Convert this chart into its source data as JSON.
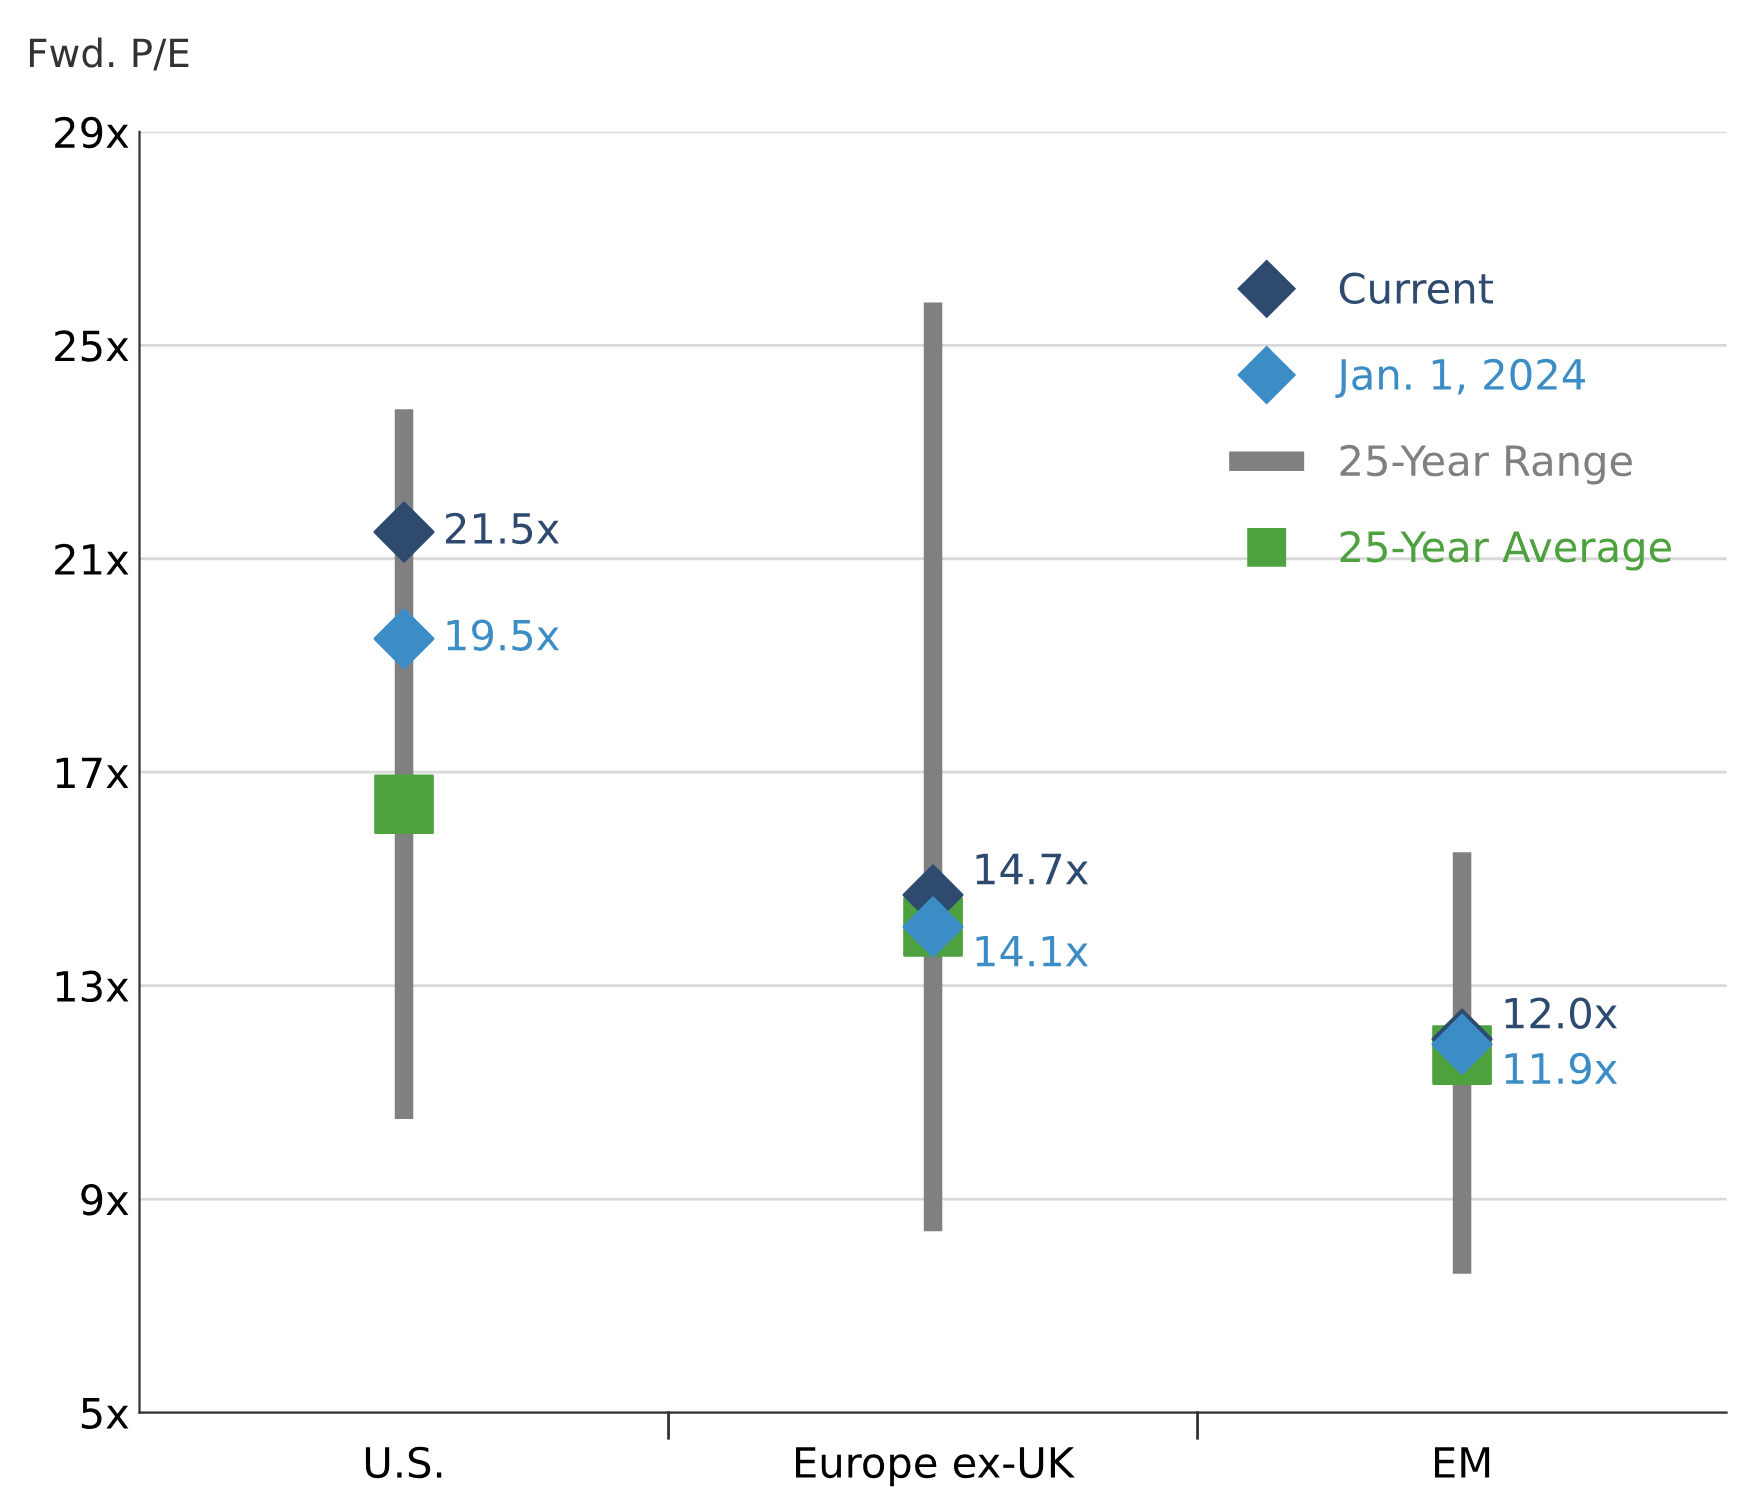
{
  "chart_data": {
    "type": "scatter",
    "ylabel": "Fwd. P/E",
    "categories": [
      "U.S.",
      "Europe ex-UK",
      "EM"
    ],
    "ylim": [
      5,
      29
    ],
    "yticks": [
      {
        "value": 5,
        "label": "5x"
      },
      {
        "value": 9,
        "label": "9x"
      },
      {
        "value": 13,
        "label": "13x"
      },
      {
        "value": 17,
        "label": "17x"
      },
      {
        "value": 21,
        "label": "21x"
      },
      {
        "value": 25,
        "label": "25x"
      },
      {
        "value": 29,
        "label": "29x"
      }
    ],
    "grid": "y",
    "legend": "top right",
    "series": [
      {
        "name": "Current",
        "marker": "diamond",
        "color": "#2e4a6e",
        "values": [
          21.5,
          14.7,
          12.0
        ],
        "value_labels": [
          "21.5x",
          "14.7x",
          "12.0x"
        ]
      },
      {
        "name": "Jan. 1, 2024",
        "marker": "diamond",
        "color": "#3c8dc5",
        "values": [
          19.5,
          14.1,
          11.9
        ],
        "value_labels": [
          "19.5x",
          "14.1x",
          "11.9x"
        ]
      },
      {
        "name": "25-Year Range",
        "type": "bar",
        "color": "#808080",
        "base": [
          10.5,
          8.4,
          7.6
        ],
        "values": [
          13.3,
          17.4,
          7.9
        ]
      },
      {
        "name": "25-Year Average",
        "marker": "square",
        "color": "#4ea13f",
        "values": [
          16.4,
          14.1,
          11.7
        ]
      }
    ]
  }
}
